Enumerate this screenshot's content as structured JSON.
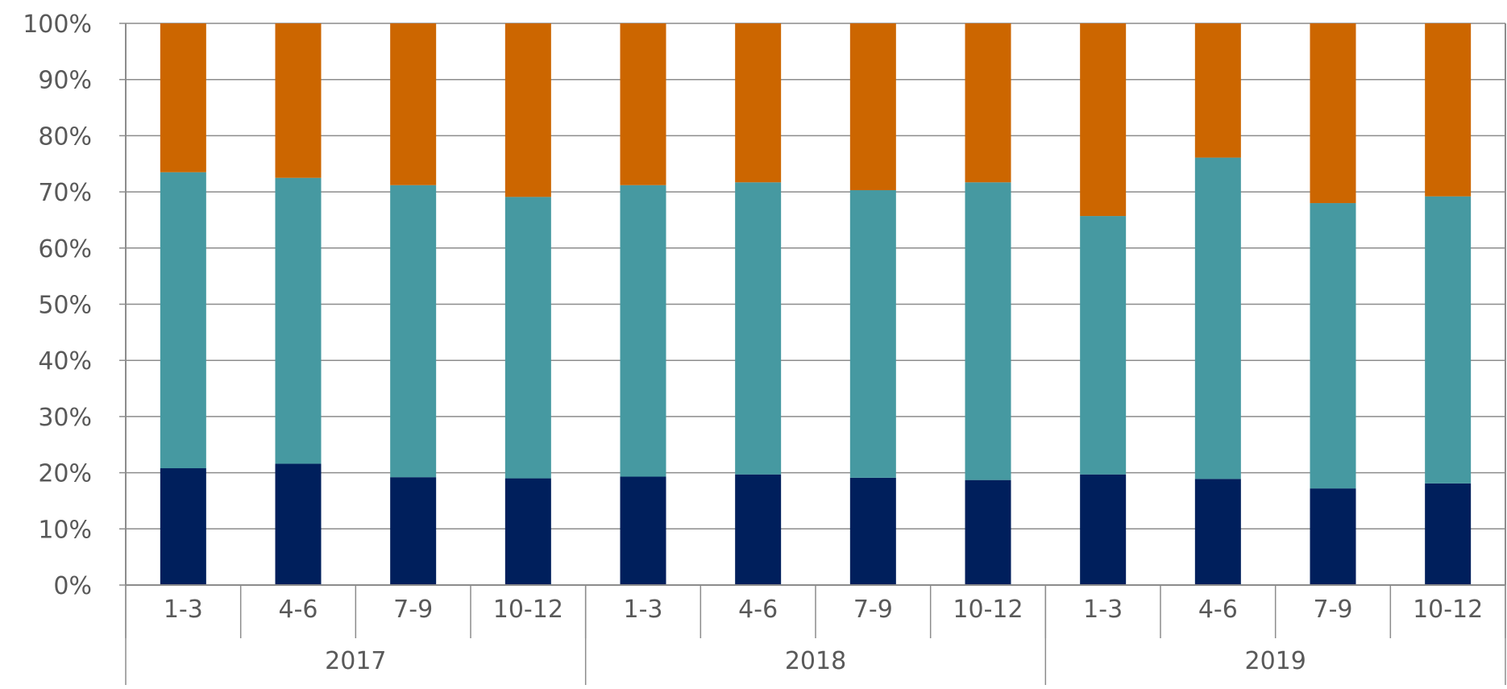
{
  "chart_data": {
    "type": "bar",
    "stacked": true,
    "percent": true,
    "ylim": [
      0,
      100
    ],
    "y_ticks": [
      "0%",
      "10%",
      "20%",
      "30%",
      "40%",
      "50%",
      "60%",
      "70%",
      "80%",
      "90%",
      "100%"
    ],
    "grid": true,
    "legend": "none",
    "categories": [
      "1-3",
      "4-6",
      "7-9",
      "10-12",
      "1-3",
      "4-6",
      "7-9",
      "10-12",
      "1-3",
      "4-6",
      "7-9",
      "10-12"
    ],
    "groups": [
      {
        "label": "2017",
        "count": 4
      },
      {
        "label": "2018",
        "count": 4
      },
      {
        "label": "2019",
        "count": 4
      }
    ],
    "series": [
      {
        "color": "#001f5c",
        "values": [
          20.8,
          21.6,
          19.2,
          19.0,
          19.3,
          19.7,
          19.1,
          18.7,
          19.7,
          18.9,
          17.2,
          18.1
        ]
      },
      {
        "color": "#4699a1",
        "values": [
          52.7,
          50.9,
          52.0,
          50.1,
          51.9,
          52.0,
          51.2,
          53.0,
          46.0,
          57.2,
          50.8,
          51.1
        ]
      },
      {
        "color": "#cc6600",
        "values": [
          26.5,
          27.5,
          28.8,
          30.9,
          28.8,
          28.3,
          29.7,
          28.3,
          34.3,
          23.9,
          32.0,
          30.8
        ]
      }
    ],
    "title": "",
    "xlabel": "",
    "ylabel": ""
  }
}
